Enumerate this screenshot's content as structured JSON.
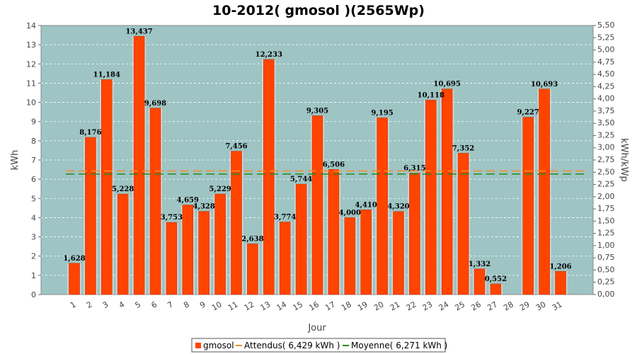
{
  "chart_data": {
    "type": "bar",
    "title": "10-2012( gmosol )(2565Wp)",
    "xlabel": "Jour",
    "ylabel": "kWh",
    "y2label": "kWh/kWp",
    "ylim": [
      0,
      14
    ],
    "y2lim": [
      0,
      5.5
    ],
    "grid": true,
    "legend_position": "bottom",
    "categories": [
      "1",
      "2",
      "3",
      "4",
      "5",
      "6",
      "7",
      "8",
      "9",
      "10",
      "11",
      "12",
      "13",
      "14",
      "15",
      "16",
      "17",
      "18",
      "19",
      "20",
      "21",
      "22",
      "23",
      "24",
      "25",
      "26",
      "27",
      "28",
      "29",
      "30",
      "31"
    ],
    "series": [
      {
        "name": "gmosol",
        "values": [
          1.628,
          8.176,
          11.184,
          5.228,
          13.437,
          9.698,
          3.753,
          4.659,
          4.328,
          5.229,
          7.456,
          2.638,
          12.233,
          3.774,
          5.744,
          9.305,
          6.506,
          4.0,
          4.41,
          9.195,
          4.32,
          6.315,
          10.118,
          10.695,
          7.352,
          1.332,
          0.552,
          null,
          9.227,
          10.693,
          1.206
        ],
        "labels": [
          "1,628",
          "8,176",
          "11,184",
          "5,228",
          "13,437",
          "9,698",
          "3,753",
          "4,659",
          "4,328",
          "5,229",
          "7,456",
          "2,638",
          "12,233",
          "3,774",
          "5,744",
          "9,305",
          "6,506",
          "4,000",
          "4,410",
          "9,195",
          "4,320",
          "6,315",
          "10,118",
          "10,695",
          "7,352",
          "1,332",
          "0,552",
          "",
          "9,227",
          "10,693",
          "1,206"
        ]
      }
    ],
    "reference_lines": [
      {
        "name": "Attendus( 6,429 kWh )",
        "value": 6.429
      },
      {
        "name": "Moyenne( 6,271 kWh )",
        "value": 6.271
      }
    ],
    "y_ticks": [
      "0",
      "1",
      "2",
      "3",
      "4",
      "5",
      "6",
      "7",
      "8",
      "9",
      "10",
      "11",
      "12",
      "13",
      "14"
    ],
    "y2_ticks": [
      "0,00",
      "0,25",
      "0,50",
      "0,75",
      "1,00",
      "1,25",
      "1,50",
      "1,75",
      "2,00",
      "2,25",
      "2,50",
      "2,75",
      "3,00",
      "3,25",
      "3,50",
      "3,75",
      "4,00",
      "4,25",
      "4,50",
      "4,75",
      "5,00",
      "5,25",
      "5,50"
    ]
  },
  "colors": {
    "plot_background": "#9ec4c4",
    "bar": "#ff4400",
    "bar_edge": "#c43600",
    "bar_shadow": "#d8d8d8",
    "attendus_line": "#ff8c1a",
    "moyenne_line": "#1e8c1e",
    "grid": "#ffffff"
  }
}
